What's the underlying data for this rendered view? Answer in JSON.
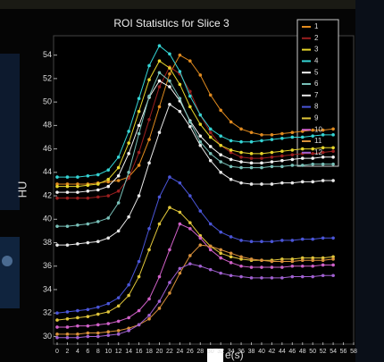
{
  "chart_data": {
    "type": "line",
    "title": "ROI Statistics for Slice 3",
    "y_label": "HU",
    "x_label": "e(s)",
    "x": [
      0,
      2,
      4,
      6,
      8,
      10,
      12,
      14,
      16,
      18,
      20,
      22,
      24,
      26,
      28,
      30,
      32,
      34,
      36,
      38,
      40,
      42,
      44,
      46,
      48,
      50,
      52,
      54
    ],
    "xlim": [
      0,
      58
    ],
    "xticks": [
      0,
      2,
      4,
      6,
      8,
      10,
      12,
      14,
      16,
      18,
      20,
      22,
      24,
      26,
      28,
      30,
      32,
      34,
      36,
      38,
      40,
      42,
      44,
      46,
      48,
      50,
      52,
      54,
      56,
      58
    ],
    "ylim": [
      29.5,
      55.5
    ],
    "yticks": [
      30,
      32,
      34,
      36,
      38,
      40,
      42,
      44,
      46,
      48,
      50,
      52,
      54
    ],
    "legend": "top-right",
    "series": [
      {
        "name": "1",
        "color": "#e08a1e",
        "values": [
          43.0,
          43.0,
          43.0,
          43.0,
          43.1,
          43.2,
          43.3,
          43.6,
          44.6,
          46.8,
          49.6,
          52.4,
          54.0,
          53.5,
          52.3,
          50.6,
          49.3,
          48.3,
          47.7,
          47.4,
          47.2,
          47.2,
          47.3,
          47.4,
          47.5,
          47.6,
          47.6,
          47.7
        ]
      },
      {
        "name": "2",
        "color": "#9a1f1f",
        "values": [
          41.8,
          41.8,
          41.8,
          41.8,
          41.9,
          42.0,
          42.4,
          43.5,
          45.7,
          48.5,
          51.3,
          53.0,
          52.4,
          50.9,
          48.9,
          47.4,
          46.3,
          45.7,
          45.3,
          45.2,
          45.2,
          45.3,
          45.4,
          45.5,
          45.6,
          45.6,
          45.7,
          45.8
        ]
      },
      {
        "name": "3",
        "color": "#e6d52a",
        "values": [
          42.8,
          42.8,
          42.8,
          42.9,
          43.0,
          43.4,
          44.4,
          46.5,
          49.2,
          51.9,
          53.5,
          52.9,
          51.5,
          49.6,
          48.1,
          47.0,
          46.3,
          45.9,
          45.7,
          45.6,
          45.6,
          45.7,
          45.8,
          45.9,
          46.0,
          46.0,
          46.1,
          46.1
        ]
      },
      {
        "name": "4",
        "color": "#34d4d4",
        "values": [
          43.6,
          43.6,
          43.6,
          43.7,
          43.8,
          44.2,
          45.3,
          47.5,
          50.3,
          53.1,
          54.8,
          54.1,
          52.6,
          50.5,
          48.9,
          47.7,
          47.1,
          46.7,
          46.6,
          46.6,
          46.7,
          46.8,
          46.9,
          47.0,
          47.0,
          47.1,
          47.2,
          47.2
        ]
      },
      {
        "name": "5",
        "color": "#f2f2f2",
        "values": [
          42.3,
          42.3,
          42.3,
          42.4,
          42.5,
          42.8,
          43.7,
          45.6,
          48.0,
          50.4,
          51.8,
          51.3,
          50.1,
          48.4,
          47.1,
          46.2,
          45.5,
          45.1,
          44.9,
          44.8,
          44.8,
          44.9,
          45.0,
          45.1,
          45.2,
          45.2,
          45.3,
          45.3
        ]
      },
      {
        "name": "6",
        "color": "#78c0b8",
        "values": [
          39.4,
          39.4,
          39.5,
          39.6,
          39.8,
          40.1,
          41.4,
          44.0,
          47.3,
          50.5,
          52.5,
          51.8,
          50.3,
          48.3,
          46.6,
          45.6,
          44.9,
          44.5,
          44.4,
          44.4,
          44.4,
          44.5,
          44.5,
          44.6,
          44.6,
          44.7,
          44.7,
          44.7
        ]
      },
      {
        "name": "7",
        "color": "#e8e8e8",
        "values": [
          37.8,
          37.8,
          37.9,
          38.0,
          38.1,
          38.4,
          39.0,
          40.2,
          42.0,
          44.8,
          47.4,
          49.8,
          49.2,
          47.9,
          46.3,
          45.0,
          44.0,
          43.4,
          43.1,
          43.0,
          43.0,
          43.0,
          43.1,
          43.1,
          43.2,
          43.2,
          43.3,
          43.3
        ]
      },
      {
        "name": "8",
        "color": "#4a55d8",
        "values": [
          32.0,
          32.1,
          32.2,
          32.3,
          32.5,
          32.8,
          33.3,
          34.4,
          36.4,
          39.2,
          41.9,
          43.6,
          43.1,
          42.0,
          40.7,
          39.6,
          38.9,
          38.5,
          38.2,
          38.1,
          38.1,
          38.1,
          38.2,
          38.2,
          38.3,
          38.3,
          38.4,
          38.4
        ]
      },
      {
        "name": "9",
        "color": "#e0c63a",
        "values": [
          31.4,
          31.5,
          31.6,
          31.7,
          31.9,
          32.1,
          32.6,
          33.5,
          35.1,
          37.4,
          39.6,
          41.0,
          40.6,
          39.7,
          38.6,
          37.7,
          37.1,
          36.8,
          36.6,
          36.5,
          36.5,
          36.5,
          36.6,
          36.6,
          36.7,
          36.7,
          36.7,
          36.8
        ]
      },
      {
        "name": "10",
        "color": "#d060c8",
        "values": [
          30.8,
          30.8,
          30.9,
          30.9,
          31.0,
          31.1,
          31.3,
          31.6,
          32.2,
          33.2,
          35.1,
          37.4,
          39.6,
          39.2,
          38.4,
          37.4,
          36.7,
          36.3,
          36.0,
          35.9,
          35.9,
          35.9,
          35.9,
          36.0,
          36.0,
          36.0,
          36.1,
          36.1
        ]
      },
      {
        "name": "11",
        "color": "#d8903a",
        "values": [
          30.2,
          30.2,
          30.2,
          30.3,
          30.3,
          30.4,
          30.5,
          30.7,
          31.0,
          31.5,
          32.4,
          33.7,
          35.4,
          36.9,
          37.8,
          37.7,
          37.4,
          37.1,
          36.8,
          36.6,
          36.5,
          36.4,
          36.4,
          36.4,
          36.5,
          36.5,
          36.5,
          36.6
        ]
      },
      {
        "name": "12",
        "color": "#a060d0",
        "values": [
          29.9,
          29.9,
          29.9,
          30.0,
          30.0,
          30.1,
          30.2,
          30.5,
          31.0,
          31.8,
          33.0,
          34.6,
          35.8,
          36.2,
          36.0,
          35.7,
          35.4,
          35.2,
          35.1,
          35.0,
          35.0,
          35.0,
          35.0,
          35.1,
          35.1,
          35.1,
          35.2,
          35.2
        ]
      }
    ]
  }
}
